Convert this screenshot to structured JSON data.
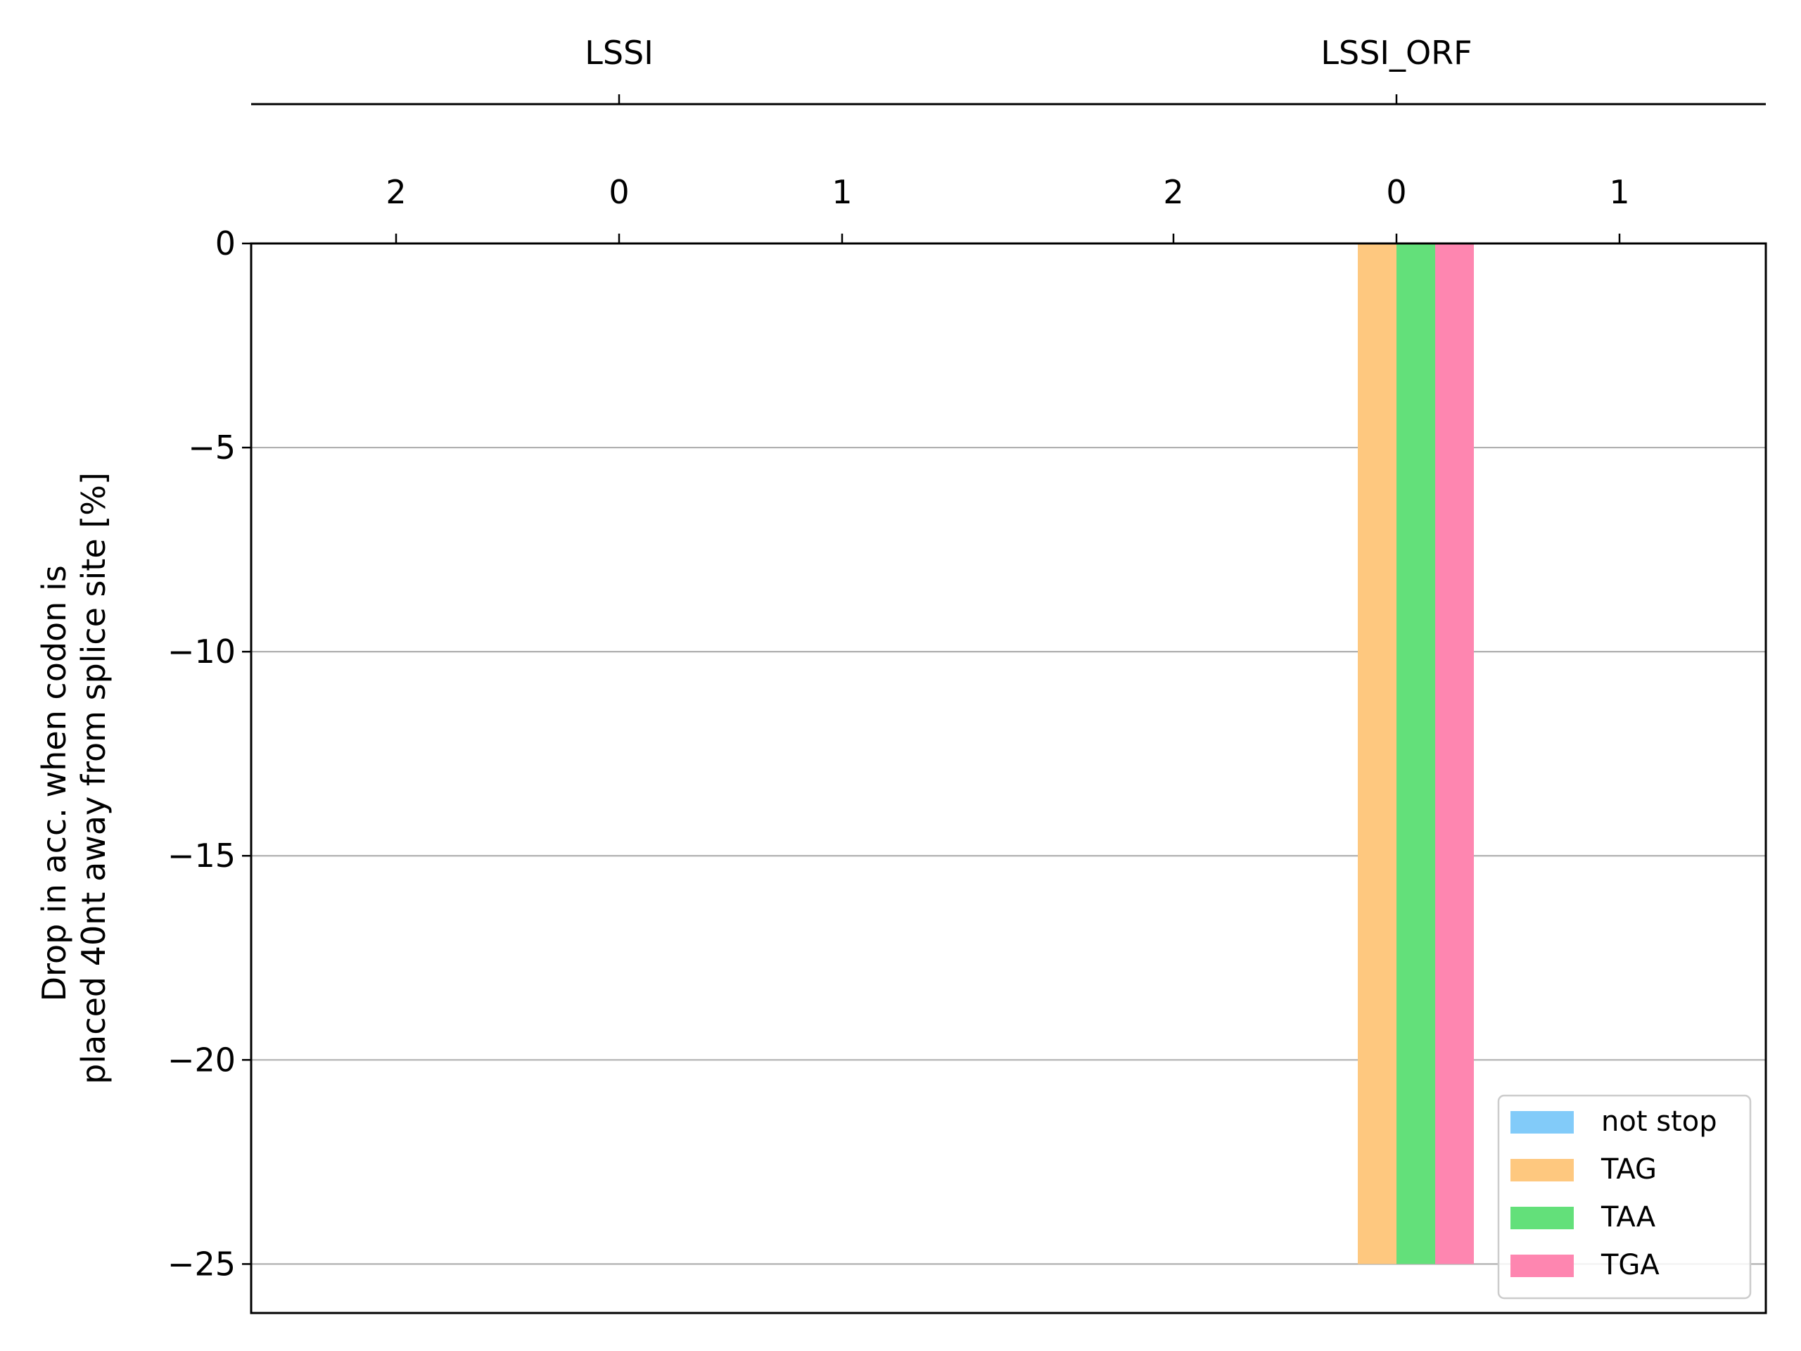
{
  "chart_data": {
    "type": "bar",
    "ylabel": [
      "Drop in acc. when codon is",
      "placed 40nt away from splice site [%]"
    ],
    "xlabel": "",
    "ylim": [
      -26.2,
      0
    ],
    "yticks": [
      0,
      -5,
      -10,
      -15,
      -20,
      -25
    ],
    "ytick_labels": [
      "0",
      "−5",
      "−10",
      "−15",
      "−20",
      "−25"
    ],
    "grid": "y-axis only",
    "legend_position": "lower right",
    "groups": [
      {
        "name": "LSSI",
        "frame_labels": [
          "2",
          "0",
          "1"
        ]
      },
      {
        "name": "LSSI_ORF",
        "frame_labels": [
          "2",
          "0",
          "1"
        ]
      }
    ],
    "series": [
      {
        "name": "not stop",
        "color": "#82cbf9",
        "values": [
          [
            0,
            0,
            0
          ],
          [
            0,
            0,
            0
          ]
        ]
      },
      {
        "name": "TAG",
        "color": "#fec87f",
        "values": [
          [
            0,
            0,
            0
          ],
          [
            0,
            -25,
            0
          ]
        ]
      },
      {
        "name": "TAA",
        "color": "#63e07a",
        "values": [
          [
            0,
            0,
            0
          ],
          [
            0,
            -25,
            0
          ]
        ]
      },
      {
        "name": "TGA",
        "color": "#fe86b0",
        "values": [
          [
            0,
            0,
            0
          ],
          [
            0,
            -25,
            0
          ]
        ]
      }
    ]
  }
}
